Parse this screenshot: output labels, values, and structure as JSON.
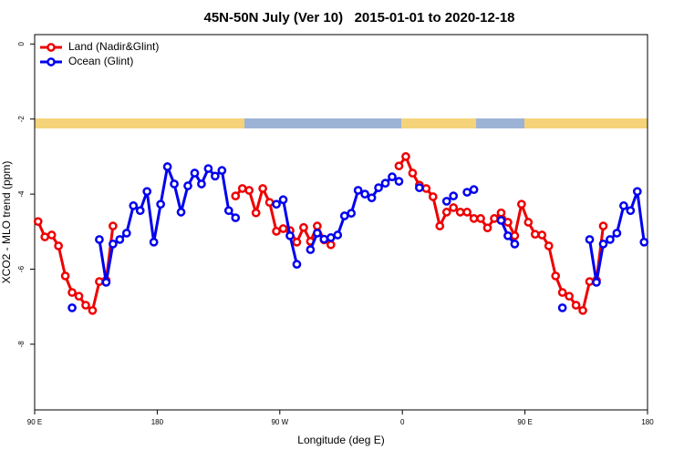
{
  "chart_data": {
    "type": "line",
    "title": "45N-50N July (Ver 10)   2015-01-01 to 2020-12-18",
    "xlabel": "Longitude (deg E)",
    "ylabel": "XCO2 - MLO trend (ppm)",
    "xlim": [
      90,
      540
    ],
    "xticks": [
      {
        "value": 90,
        "label": "90 E"
      },
      {
        "value": 180,
        "label": "180"
      },
      {
        "value": 270,
        "label": "90 W"
      },
      {
        "value": 360,
        "label": "0"
      },
      {
        "value": 450,
        "label": "90 E"
      },
      {
        "value": 540,
        "label": "180"
      }
    ],
    "ylim": [
      -9.75,
      0.25
    ],
    "yticks": [
      0,
      -2,
      -4,
      -6,
      -8
    ],
    "legend": "top-left",
    "x": [
      92.5,
      97.5,
      102.5,
      107.5,
      112.5,
      117.5,
      122.5,
      127.5,
      132.5,
      137.5,
      142.5,
      147.5,
      152.5,
      157.5,
      162.5,
      167.5,
      172.5,
      177.5,
      182.5,
      187.5,
      192.5,
      197.5,
      202.5,
      207.5,
      212.5,
      217.5,
      222.5,
      227.5,
      232.5,
      237.5,
      242.5,
      247.5,
      252.5,
      257.5,
      262.5,
      267.5,
      272.5,
      277.5,
      282.5,
      287.5,
      292.5,
      297.5,
      302.5,
      307.5,
      312.5,
      317.5,
      322.5,
      327.5,
      332.5,
      337.5,
      342.5,
      347.5,
      352.5,
      357.5,
      362.5,
      367.5,
      372.5,
      377.5,
      382.5,
      387.5,
      392.5,
      397.5,
      402.5,
      407.5,
      412.5,
      417.5,
      422.5,
      427.5,
      432.5,
      437.5,
      442.5,
      447.5,
      452.5,
      457.5,
      462.5,
      467.5,
      472.5,
      477.5,
      482.5,
      487.5,
      492.5,
      497.5,
      502.5,
      507.5,
      512.5,
      517.5,
      522.5,
      527.5,
      532.5,
      537.5
    ],
    "series": [
      {
        "name": "Land (Nadir&Glint)",
        "color": "#ee0000",
        "values": [
          -4.73,
          -5.14,
          -5.09,
          -5.38,
          -6.18,
          -6.62,
          -6.72,
          -6.96,
          -7.1,
          -6.33,
          -6.3,
          -4.85,
          null,
          null,
          null,
          null,
          null,
          null,
          null,
          null,
          null,
          null,
          null,
          null,
          null,
          null,
          null,
          null,
          null,
          -4.05,
          -3.85,
          -3.9,
          -4.5,
          -3.85,
          -4.22,
          -4.99,
          -4.92,
          -4.97,
          -5.28,
          -4.89,
          -5.26,
          -4.85,
          -5.22,
          -5.35,
          null,
          null,
          null,
          null,
          null,
          null,
          null,
          null,
          null,
          -3.25,
          -3.0,
          -3.44,
          -3.76,
          -3.85,
          -4.07,
          -4.85,
          -4.48,
          -4.36,
          -4.48,
          -4.48,
          -4.65,
          -4.65,
          -4.9,
          -4.65,
          -4.5,
          -4.75,
          -5.11,
          -4.27,
          -4.75,
          -5.07,
          -5.09,
          -5.38,
          -6.18,
          -6.62,
          -6.72,
          -6.96,
          -7.1,
          -6.33,
          -6.3,
          -4.85,
          null,
          null,
          null,
          null,
          null,
          null
        ]
      },
      {
        "name": "Ocean (Glint)",
        "color": "#0000ee",
        "values": [
          null,
          null,
          null,
          null,
          null,
          -7.03,
          null,
          null,
          null,
          -5.21,
          -6.35,
          -5.33,
          -5.21,
          -5.04,
          -4.31,
          -4.44,
          -3.93,
          -5.28,
          -4.27,
          -3.27,
          -3.73,
          -4.48,
          -3.78,
          -3.44,
          -3.73,
          -3.32,
          -3.52,
          -3.37,
          -4.44,
          -4.63,
          null,
          null,
          null,
          null,
          null,
          -4.27,
          -4.15,
          -5.11,
          -5.87,
          null,
          -5.48,
          -5.04,
          -5.2,
          -5.16,
          -5.09,
          -4.58,
          -4.51,
          -3.9,
          -4.0,
          -4.1,
          -3.83,
          -3.71,
          -3.54,
          -3.66,
          null,
          null,
          -3.83,
          null,
          null,
          null,
          -4.19,
          -4.05,
          null,
          -3.95,
          -3.88,
          null,
          null,
          null,
          -4.7,
          -5.11,
          -5.33,
          null,
          null,
          null,
          null,
          null,
          null,
          -7.03,
          null,
          null,
          null,
          -5.21,
          -6.35,
          -5.33,
          -5.21,
          -5.04,
          -4.31,
          -4.44,
          -3.93,
          -5.28
        ]
      }
    ]
  }
}
